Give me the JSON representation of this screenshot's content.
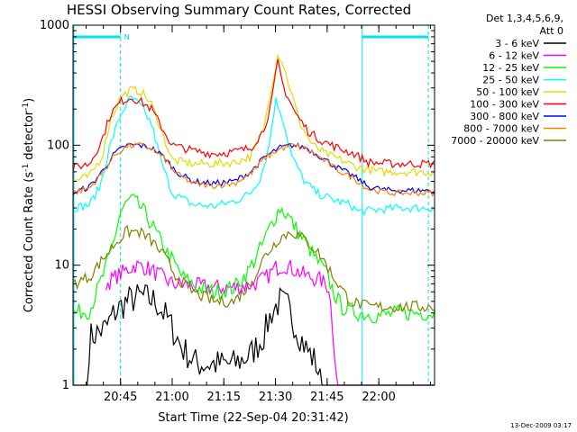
{
  "chart_data": {
    "type": "line",
    "title": "HESSI Observing Summary Count Rates, Corrected",
    "xlabel": "Start Time (22-Sep-04 20:31:42)",
    "ylabel_pre": "Corrected Count Rate (s",
    "ylabel_sup1": "-1",
    "ylabel_mid": " detector",
    "ylabel_sup2": "-1",
    "ylabel_post": ")",
    "y_scale": "log",
    "ylim": [
      1,
      1000
    ],
    "xlim_minutes": [
      20.52,
      22.27
    ],
    "x_ticks": [
      {
        "label": "20:45",
        "value": 20.75
      },
      {
        "label": "21:00",
        "value": 21.0
      },
      {
        "label": "21:15",
        "value": 21.25
      },
      {
        "label": "21:30",
        "value": 21.5
      },
      {
        "label": "21:45",
        "value": 21.75
      },
      {
        "label": "22:00",
        "value": 22.0
      }
    ],
    "y_ticks": [
      {
        "label": "1",
        "value": 1
      },
      {
        "label": "10",
        "value": 10
      },
      {
        "label": "100",
        "value": 100
      },
      {
        "label": "1000",
        "value": 1000
      }
    ],
    "legend_title_1": "Det 1,3,4,5,6,9,",
    "legend_title_2": "Att 0",
    "legend_position": "right",
    "n_label": "N",
    "night_intervals": [
      [
        20.52,
        20.75
      ],
      [
        21.92,
        22.24
      ]
    ],
    "dashed_times": [
      20.75,
      22.24
    ],
    "series": [
      {
        "name": "3 - 6 keV",
        "color": "#000000",
        "points": [
          [
            20.52,
            1
          ],
          [
            20.59,
            1
          ],
          [
            20.6,
            2.5
          ],
          [
            20.68,
            3
          ],
          [
            20.72,
            4
          ],
          [
            20.78,
            5
          ],
          [
            20.85,
            5.5
          ],
          [
            20.92,
            5
          ],
          [
            20.98,
            3.5
          ],
          [
            21.05,
            2
          ],
          [
            21.12,
            1.5
          ],
          [
            21.2,
            1.5
          ],
          [
            21.3,
            1.5
          ],
          [
            21.38,
            1.8
          ],
          [
            21.44,
            2.5
          ],
          [
            21.48,
            4
          ],
          [
            21.52,
            5
          ],
          [
            21.56,
            4.5
          ],
          [
            21.6,
            3
          ],
          [
            21.65,
            2
          ],
          [
            21.7,
            1.5
          ],
          [
            21.72,
            1
          ],
          [
            22.27,
            1
          ]
        ]
      },
      {
        "name": "6 - 12 keV",
        "color": "#ff00ff",
        "points": [
          [
            20.68,
            7
          ],
          [
            20.75,
            8.5
          ],
          [
            20.82,
            10
          ],
          [
            20.88,
            9.5
          ],
          [
            20.95,
            8
          ],
          [
            21.0,
            7
          ],
          [
            21.1,
            6.8
          ],
          [
            21.2,
            6.5
          ],
          [
            21.3,
            6.5
          ],
          [
            21.4,
            7
          ],
          [
            21.46,
            8
          ],
          [
            21.5,
            9.5
          ],
          [
            21.55,
            10
          ],
          [
            21.6,
            9
          ],
          [
            21.66,
            8
          ],
          [
            21.72,
            7.5
          ],
          [
            21.76,
            6.5
          ],
          [
            21.8,
            1
          ],
          [
            22.27,
            1
          ]
        ]
      },
      {
        "name": "12 - 25 keV",
        "color": "#00ff00",
        "points": [
          [
            20.52,
            4
          ],
          [
            20.6,
            4.2
          ],
          [
            20.65,
            7
          ],
          [
            20.7,
            12
          ],
          [
            20.75,
            28
          ],
          [
            20.8,
            36
          ],
          [
            20.85,
            30
          ],
          [
            20.9,
            22
          ],
          [
            20.95,
            15
          ],
          [
            21.0,
            11
          ],
          [
            21.05,
            8
          ],
          [
            21.12,
            6.5
          ],
          [
            21.2,
            6
          ],
          [
            21.3,
            6.5
          ],
          [
            21.37,
            9
          ],
          [
            21.43,
            14
          ],
          [
            21.48,
            22
          ],
          [
            21.52,
            30
          ],
          [
            21.56,
            26
          ],
          [
            21.6,
            20
          ],
          [
            21.65,
            15
          ],
          [
            21.7,
            11
          ],
          [
            21.74,
            9
          ],
          [
            21.78,
            6
          ],
          [
            21.82,
            4.5
          ],
          [
            21.9,
            4
          ],
          [
            22.0,
            3.8
          ],
          [
            22.1,
            4
          ],
          [
            22.27,
            4
          ]
        ]
      },
      {
        "name": "25 - 50 keV",
        "color": "#00ffff",
        "points": [
          [
            20.52,
            30
          ],
          [
            20.6,
            32
          ],
          [
            20.65,
            45
          ],
          [
            20.7,
            100
          ],
          [
            20.75,
            180
          ],
          [
            20.8,
            250
          ],
          [
            20.85,
            210
          ],
          [
            20.9,
            150
          ],
          [
            20.95,
            70
          ],
          [
            21.0,
            40
          ],
          [
            21.1,
            32
          ],
          [
            21.2,
            31
          ],
          [
            21.3,
            34
          ],
          [
            21.38,
            40
          ],
          [
            21.43,
            55
          ],
          [
            21.47,
            100
          ],
          [
            21.5,
            240
          ],
          [
            21.53,
            180
          ],
          [
            21.58,
            80
          ],
          [
            21.64,
            50
          ],
          [
            21.7,
            40
          ],
          [
            21.78,
            35
          ],
          [
            21.86,
            32
          ],
          [
            21.9,
            28
          ],
          [
            22.0,
            29
          ],
          [
            22.1,
            30
          ],
          [
            22.27,
            30
          ]
        ]
      },
      {
        "name": "50 - 100 keV",
        "color": "#dddd00",
        "points": [
          [
            20.52,
            50
          ],
          [
            20.6,
            55
          ],
          [
            20.66,
            80
          ],
          [
            20.7,
            160
          ],
          [
            20.75,
            250
          ],
          [
            20.8,
            290
          ],
          [
            20.85,
            280
          ],
          [
            20.9,
            220
          ],
          [
            20.95,
            130
          ],
          [
            21.0,
            75
          ],
          [
            21.1,
            70
          ],
          [
            21.2,
            70
          ],
          [
            21.3,
            72
          ],
          [
            21.38,
            80
          ],
          [
            21.44,
            130
          ],
          [
            21.48,
            300
          ],
          [
            21.51,
            560
          ],
          [
            21.53,
            520
          ],
          [
            21.57,
            300
          ],
          [
            21.62,
            150
          ],
          [
            21.68,
            100
          ],
          [
            21.74,
            85
          ],
          [
            21.82,
            75
          ],
          [
            21.9,
            65
          ],
          [
            22.0,
            60
          ],
          [
            22.27,
            60
          ]
        ]
      },
      {
        "name": "100 - 300 keV",
        "color": "#ff0000",
        "points": [
          [
            20.52,
            65
          ],
          [
            20.6,
            70
          ],
          [
            20.66,
            110
          ],
          [
            20.7,
            180
          ],
          [
            20.75,
            230
          ],
          [
            20.8,
            250
          ],
          [
            20.85,
            230
          ],
          [
            20.9,
            200
          ],
          [
            20.95,
            140
          ],
          [
            21.0,
            100
          ],
          [
            21.1,
            90
          ],
          [
            21.2,
            85
          ],
          [
            21.3,
            88
          ],
          [
            21.38,
            95
          ],
          [
            21.44,
            130
          ],
          [
            21.48,
            220
          ],
          [
            21.51,
            500
          ],
          [
            21.54,
            300
          ],
          [
            21.6,
            180
          ],
          [
            21.66,
            130
          ],
          [
            21.72,
            110
          ],
          [
            21.8,
            95
          ],
          [
            21.88,
            85
          ],
          [
            21.95,
            72
          ],
          [
            22.05,
            70
          ],
          [
            22.27,
            70
          ]
        ]
      },
      {
        "name": "300 - 800 keV",
        "color": "#0000ff",
        "points": [
          [
            20.52,
            40
          ],
          [
            20.6,
            45
          ],
          [
            20.66,
            60
          ],
          [
            20.72,
            85
          ],
          [
            20.78,
            100
          ],
          [
            20.84,
            100
          ],
          [
            20.9,
            95
          ],
          [
            20.96,
            80
          ],
          [
            21.02,
            60
          ],
          [
            21.1,
            50
          ],
          [
            21.2,
            48
          ],
          [
            21.3,
            50
          ],
          [
            21.38,
            60
          ],
          [
            21.45,
            80
          ],
          [
            21.52,
            95
          ],
          [
            21.58,
            100
          ],
          [
            21.65,
            95
          ],
          [
            21.72,
            80
          ],
          [
            21.8,
            65
          ],
          [
            21.88,
            55
          ],
          [
            21.95,
            45
          ],
          [
            22.05,
            42
          ],
          [
            22.27,
            42
          ]
        ]
      },
      {
        "name": "800 - 7000 keV",
        "color": "#ff8000",
        "points": [
          [
            20.52,
            40
          ],
          [
            20.6,
            44
          ],
          [
            20.66,
            58
          ],
          [
            20.72,
            82
          ],
          [
            20.78,
            98
          ],
          [
            20.84,
            100
          ],
          [
            20.9,
            94
          ],
          [
            20.96,
            78
          ],
          [
            21.02,
            58
          ],
          [
            21.1,
            48
          ],
          [
            21.2,
            46
          ],
          [
            21.3,
            48
          ],
          [
            21.38,
            58
          ],
          [
            21.45,
            78
          ],
          [
            21.52,
            93
          ],
          [
            21.58,
            100
          ],
          [
            21.65,
            93
          ],
          [
            21.72,
            78
          ],
          [
            21.8,
            62
          ],
          [
            21.88,
            53
          ],
          [
            21.95,
            43
          ],
          [
            22.05,
            40
          ],
          [
            22.27,
            40
          ]
        ]
      },
      {
        "name": "7000 - 20000 keV",
        "color": "#808000",
        "points": [
          [
            20.52,
            7
          ],
          [
            20.6,
            8
          ],
          [
            20.66,
            11
          ],
          [
            20.72,
            15
          ],
          [
            20.78,
            19
          ],
          [
            20.84,
            19
          ],
          [
            20.9,
            16
          ],
          [
            20.96,
            12
          ],
          [
            21.02,
            8
          ],
          [
            21.1,
            6
          ],
          [
            21.2,
            5
          ],
          [
            21.3,
            5
          ],
          [
            21.38,
            7
          ],
          [
            21.45,
            12
          ],
          [
            21.52,
            17
          ],
          [
            21.58,
            19
          ],
          [
            21.65,
            16
          ],
          [
            21.72,
            12
          ],
          [
            21.78,
            8
          ],
          [
            21.86,
            5
          ],
          [
            21.95,
            4.5
          ],
          [
            22.1,
            4.5
          ],
          [
            22.27,
            4.5
          ]
        ]
      }
    ]
  },
  "footer": {
    "date_stamp": "13-Dec-2009 03:17"
  }
}
